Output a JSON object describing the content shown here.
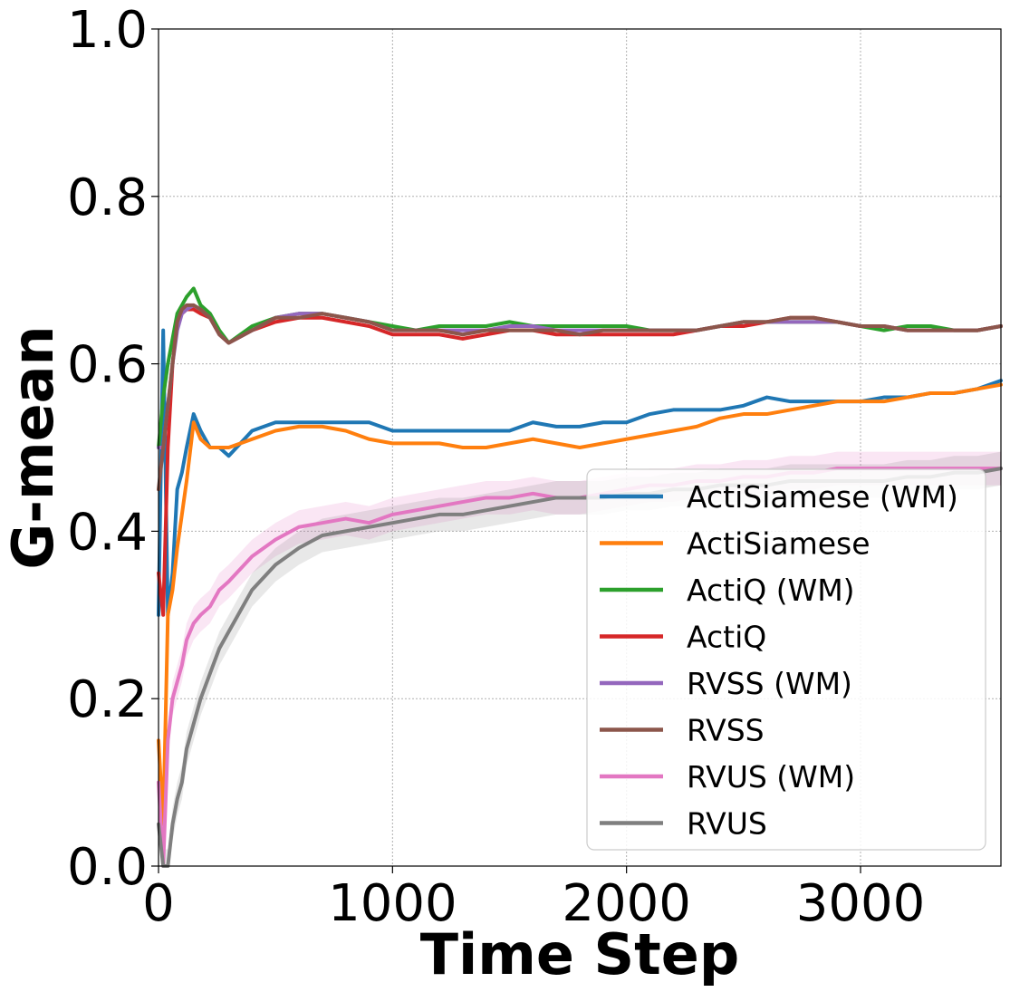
{
  "chart_data": {
    "type": "line",
    "title": "",
    "xlabel": "Time Step",
    "ylabel": "G-mean",
    "xlim": [
      0,
      3600
    ],
    "ylim": [
      0.0,
      1.0
    ],
    "grid": true,
    "legend_position": "center-right",
    "x_ticks": [
      {
        "value": 0,
        "label": "0"
      },
      {
        "value": 1000,
        "label": "1000"
      },
      {
        "value": 2000,
        "label": "2000"
      },
      {
        "value": 3000,
        "label": "3000"
      }
    ],
    "y_ticks": [
      {
        "value": 0.0,
        "label": "0.0"
      },
      {
        "value": 0.2,
        "label": "0.2"
      },
      {
        "value": 0.4,
        "label": "0.4"
      },
      {
        "value": 0.6,
        "label": "0.6"
      },
      {
        "value": 0.8,
        "label": "0.8"
      },
      {
        "value": 1.0,
        "label": "1.0"
      }
    ],
    "x": [
      0,
      20,
      40,
      60,
      80,
      100,
      120,
      150,
      180,
      220,
      260,
      300,
      400,
      500,
      600,
      700,
      800,
      900,
      1000,
      1100,
      1200,
      1300,
      1400,
      1500,
      1600,
      1700,
      1800,
      1900,
      2000,
      2100,
      2200,
      2300,
      2400,
      2500,
      2600,
      2700,
      2800,
      2900,
      3000,
      3100,
      3200,
      3300,
      3400,
      3500,
      3600
    ],
    "series": [
      {
        "name": "ActiSiamese (WM)",
        "color": "#1f77b4",
        "band": false,
        "values": [
          0.3,
          0.64,
          0.3,
          0.35,
          0.45,
          0.47,
          0.5,
          0.54,
          0.52,
          0.5,
          0.5,
          0.49,
          0.52,
          0.53,
          0.53,
          0.53,
          0.53,
          0.53,
          0.52,
          0.52,
          0.52,
          0.52,
          0.52,
          0.52,
          0.53,
          0.525,
          0.525,
          0.53,
          0.53,
          0.54,
          0.545,
          0.545,
          0.545,
          0.55,
          0.56,
          0.555,
          0.555,
          0.555,
          0.555,
          0.56,
          0.56,
          0.565,
          0.565,
          0.57,
          0.58
        ]
      },
      {
        "name": "ActiSiamese",
        "color": "#ff7f0e",
        "band": false,
        "values": [
          0.15,
          0.05,
          0.3,
          0.33,
          0.38,
          0.42,
          0.46,
          0.53,
          0.51,
          0.5,
          0.5,
          0.5,
          0.51,
          0.52,
          0.525,
          0.525,
          0.52,
          0.51,
          0.505,
          0.505,
          0.505,
          0.5,
          0.5,
          0.505,
          0.51,
          0.505,
          0.5,
          0.505,
          0.51,
          0.515,
          0.52,
          0.525,
          0.535,
          0.54,
          0.54,
          0.545,
          0.55,
          0.555,
          0.555,
          0.555,
          0.56,
          0.565,
          0.565,
          0.57,
          0.575
        ]
      },
      {
        "name": "ActiQ (WM)",
        "color": "#2ca02c",
        "band": false,
        "values": [
          0.5,
          0.56,
          0.6,
          0.63,
          0.66,
          0.67,
          0.68,
          0.69,
          0.67,
          0.66,
          0.64,
          0.625,
          0.645,
          0.655,
          0.66,
          0.66,
          0.655,
          0.65,
          0.645,
          0.64,
          0.645,
          0.645,
          0.645,
          0.65,
          0.645,
          0.645,
          0.645,
          0.645,
          0.645,
          0.64,
          0.64,
          0.64,
          0.645,
          0.65,
          0.65,
          0.65,
          0.65,
          0.65,
          0.645,
          0.64,
          0.645,
          0.645,
          0.64,
          0.64,
          0.645
        ]
      },
      {
        "name": "ActiQ",
        "color": "#d62728",
        "band": false,
        "values": [
          0.35,
          0.3,
          0.5,
          0.6,
          0.65,
          0.66,
          0.665,
          0.665,
          0.66,
          0.655,
          0.635,
          0.625,
          0.64,
          0.65,
          0.655,
          0.655,
          0.65,
          0.645,
          0.635,
          0.635,
          0.635,
          0.63,
          0.635,
          0.64,
          0.64,
          0.635,
          0.635,
          0.635,
          0.635,
          0.635,
          0.635,
          0.64,
          0.645,
          0.645,
          0.65,
          0.655,
          0.655,
          0.65,
          0.645,
          0.645,
          0.64,
          0.64,
          0.64,
          0.64,
          0.645
        ]
      },
      {
        "name": "RVSS (WM)",
        "color": "#9467bd",
        "band": false,
        "values": [
          0.5,
          0.5,
          0.55,
          0.6,
          0.64,
          0.66,
          0.665,
          0.67,
          0.665,
          0.655,
          0.635,
          0.625,
          0.64,
          0.655,
          0.66,
          0.66,
          0.655,
          0.65,
          0.64,
          0.64,
          0.64,
          0.64,
          0.64,
          0.645,
          0.645,
          0.64,
          0.64,
          0.64,
          0.64,
          0.64,
          0.64,
          0.64,
          0.645,
          0.65,
          0.65,
          0.65,
          0.65,
          0.65,
          0.645,
          0.645,
          0.64,
          0.64,
          0.64,
          0.64,
          0.645
        ]
      },
      {
        "name": "RVSS",
        "color": "#8c564b",
        "band": false,
        "values": [
          0.45,
          0.5,
          0.55,
          0.6,
          0.65,
          0.665,
          0.67,
          0.67,
          0.665,
          0.655,
          0.635,
          0.625,
          0.64,
          0.655,
          0.655,
          0.66,
          0.655,
          0.65,
          0.64,
          0.64,
          0.64,
          0.635,
          0.64,
          0.64,
          0.64,
          0.64,
          0.635,
          0.64,
          0.64,
          0.64,
          0.64,
          0.64,
          0.645,
          0.65,
          0.65,
          0.655,
          0.655,
          0.65,
          0.645,
          0.645,
          0.64,
          0.64,
          0.64,
          0.64,
          0.645
        ]
      },
      {
        "name": "RVUS (WM)",
        "color": "#e377c2",
        "band": true,
        "values": [
          0.1,
          0.0,
          0.15,
          0.2,
          0.22,
          0.24,
          0.27,
          0.29,
          0.3,
          0.31,
          0.33,
          0.34,
          0.37,
          0.39,
          0.405,
          0.41,
          0.415,
          0.41,
          0.42,
          0.425,
          0.43,
          0.435,
          0.44,
          0.44,
          0.445,
          0.44,
          0.44,
          0.445,
          0.45,
          0.455,
          0.455,
          0.46,
          0.46,
          0.465,
          0.465,
          0.47,
          0.47,
          0.475,
          0.475,
          0.475,
          0.475,
          0.475,
          0.475,
          0.475,
          0.475
        ]
      },
      {
        "name": "RVUS",
        "color": "#7f7f7f",
        "band": true,
        "values": [
          0.05,
          0.0,
          0.0,
          0.05,
          0.08,
          0.1,
          0.14,
          0.17,
          0.2,
          0.23,
          0.26,
          0.28,
          0.33,
          0.36,
          0.38,
          0.395,
          0.4,
          0.405,
          0.41,
          0.415,
          0.42,
          0.42,
          0.425,
          0.43,
          0.435,
          0.44,
          0.44,
          0.44,
          0.445,
          0.445,
          0.45,
          0.45,
          0.455,
          0.455,
          0.455,
          0.46,
          0.46,
          0.46,
          0.46,
          0.46,
          0.465,
          0.465,
          0.47,
          0.47,
          0.475
        ]
      }
    ]
  }
}
